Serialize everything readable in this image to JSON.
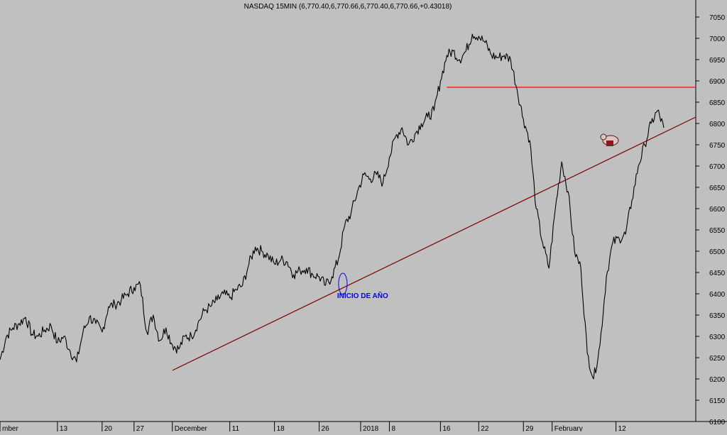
{
  "chart_data": {
    "type": "line",
    "title": "NASDAQ 15MIN (6,770.40,6,770.66,6,770.40,6,770.66,+0.43018)",
    "xlabel": "",
    "ylabel": "",
    "ylim": [
      6100,
      7060
    ],
    "y_ticks": [
      6100,
      6150,
      6200,
      6250,
      6300,
      6350,
      6400,
      6450,
      6500,
      6550,
      6600,
      6650,
      6700,
      6750,
      6800,
      6850,
      6900,
      6950,
      7000,
      7050
    ],
    "x_range": [
      0,
      109
    ],
    "x_tick_labels": [
      {
        "label": "mber",
        "x": 0
      },
      {
        "label": "13",
        "x": 9
      },
      {
        "label": "20",
        "x": 16
      },
      {
        "label": "27",
        "x": 21
      },
      {
        "label": "December",
        "x": 27
      },
      {
        "label": "11",
        "x": 36
      },
      {
        "label": "18",
        "x": 43
      },
      {
        "label": "26",
        "x": 50
      },
      {
        "label": "2018",
        "x": 56.5
      },
      {
        "label": "8",
        "x": 61
      },
      {
        "label": "16",
        "x": 69
      },
      {
        "label": "22",
        "x": 75
      },
      {
        "label": "29",
        "x": 82
      },
      {
        "label": "February",
        "x": 86.5
      },
      {
        "label": "12",
        "x": 96.5
      }
    ],
    "grid": false,
    "series": [
      {
        "name": "",
        "color": "#000000",
        "x": [
          0,
          1,
          2,
          3,
          4,
          5,
          6,
          7,
          8,
          9,
          10,
          11,
          12,
          13,
          14,
          15,
          16,
          17,
          18,
          19,
          20,
          21,
          22,
          23,
          24,
          25,
          26,
          27,
          28,
          29,
          30,
          31,
          32,
          33,
          34,
          35,
          36,
          37,
          38,
          39,
          40,
          41,
          42,
          43,
          44,
          45,
          46,
          47,
          48,
          49,
          50,
          51,
          52,
          53,
          54,
          55,
          56,
          57,
          58,
          59,
          60,
          61,
          62,
          63,
          64,
          65,
          66,
          67,
          68,
          69,
          70,
          71,
          72,
          73,
          74,
          75,
          76,
          77,
          78,
          79,
          80,
          81,
          82,
          83,
          84,
          85,
          86,
          87,
          88,
          89,
          90,
          91,
          92,
          93,
          94,
          95,
          96,
          97,
          98,
          99,
          100,
          101,
          102,
          103,
          104
        ],
        "values": [
          6245,
          6300,
          6320,
          6330,
          6345,
          6305,
          6300,
          6315,
          6325,
          6285,
          6300,
          6265,
          6240,
          6310,
          6345,
          6330,
          6310,
          6370,
          6375,
          6385,
          6400,
          6415,
          6420,
          6310,
          6350,
          6290,
          6320,
          6280,
          6270,
          6300,
          6300,
          6330,
          6360,
          6370,
          6385,
          6400,
          6390,
          6410,
          6420,
          6470,
          6510,
          6500,
          6490,
          6470,
          6480,
          6475,
          6445,
          6455,
          6460,
          6445,
          6440,
          6420,
          6440,
          6480,
          6560,
          6590,
          6640,
          6680,
          6670,
          6680,
          6660,
          6720,
          6770,
          6790,
          6750,
          6775,
          6800,
          6815,
          6830,
          6900,
          6960,
          6970,
          6950,
          6970,
          7010,
          7005,
          6990,
          6960,
          6955,
          6960,
          6950,
          6880,
          6810,
          6760,
          6600,
          6520,
          6460,
          6600,
          6710,
          6640,
          6500,
          6460,
          6260,
          6200,
          6280,
          6440,
          6520,
          6530,
          6540,
          6620,
          6700,
          6750,
          6800,
          6830,
          6790
        ]
      }
    ],
    "overlays": {
      "trendline": {
        "color": "#800000",
        "from": {
          "x": 27,
          "y": 6220
        },
        "to": {
          "x": 109,
          "y": 6815
        }
      },
      "resistance": {
        "color": "#ff0000",
        "y": 6885,
        "x_from": 70,
        "x_to": 109
      },
      "annotation": {
        "text": "INICIO DE AÑO",
        "color": "#0000ff",
        "x": 53.6,
        "y": 6410
      }
    }
  }
}
